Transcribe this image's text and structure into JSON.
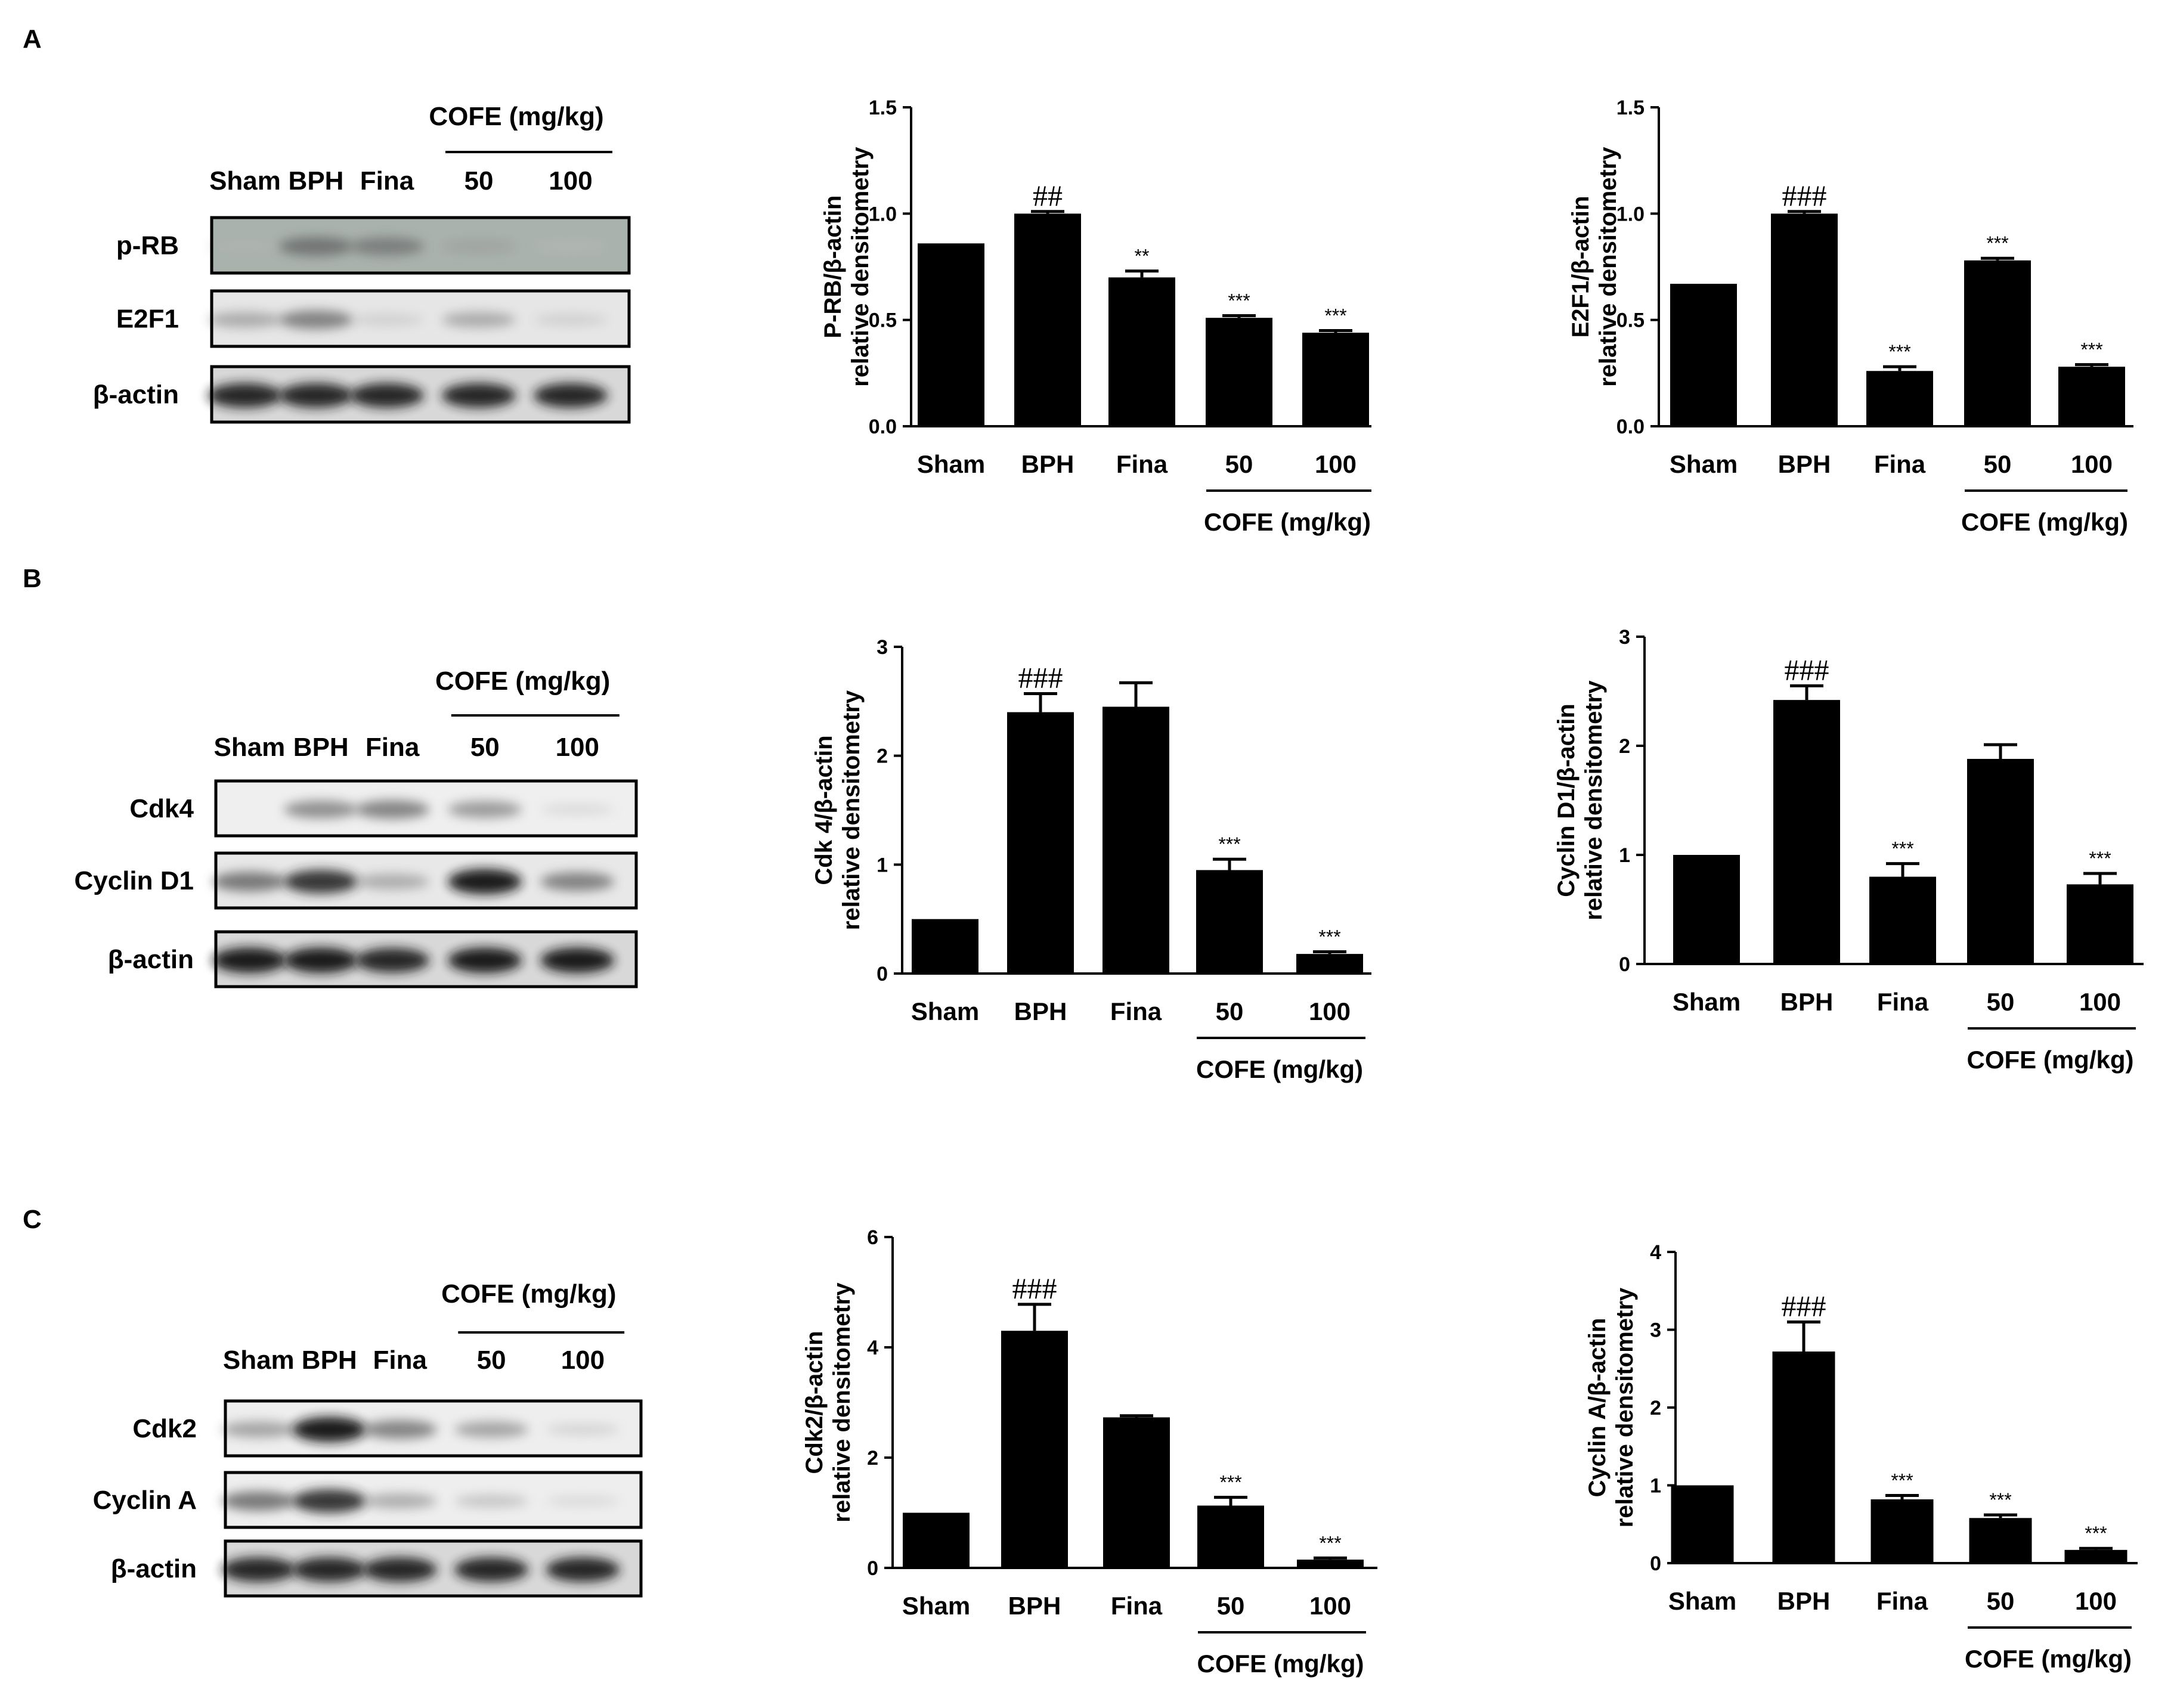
{
  "panels": [
    {
      "letter": "A",
      "blot": {
        "group_label": "COFE (mg/kg)",
        "lanes": [
          "Sham",
          "BPH",
          "Fina",
          "50",
          "100"
        ],
        "rows": [
          {
            "label": "p-RB",
            "intensity": [
              0.1,
              0.55,
              0.5,
              0.25,
              0.05
            ],
            "bg": "#a9b2ad"
          },
          {
            "label": "E2F1",
            "intensity": [
              0.35,
              0.55,
              0.1,
              0.35,
              0.1
            ],
            "bg": "#e6e6e6"
          },
          {
            "label": "β-actin",
            "intensity": [
              0.9,
              0.9,
              0.9,
              0.9,
              0.9
            ],
            "bg": "#d8d8d8"
          }
        ]
      },
      "charts_key": [
        0,
        1
      ]
    },
    {
      "letter": "B",
      "blot": {
        "group_label": "COFE (mg/kg)",
        "lanes": [
          "Sham",
          "BPH",
          "Fina",
          "50",
          "100"
        ],
        "rows": [
          {
            "label": "Cdk4",
            "intensity": [
              0.02,
              0.5,
              0.55,
              0.45,
              0.05
            ],
            "bg": "#efefef"
          },
          {
            "label": "Cyclin D1",
            "intensity": [
              0.6,
              0.85,
              0.35,
              0.95,
              0.55
            ],
            "bg": "#e8e8e8"
          },
          {
            "label": "β-actin",
            "intensity": [
              0.95,
              0.95,
              0.9,
              0.95,
              0.95
            ],
            "bg": "#d8d8d8"
          }
        ]
      }
    },
    {
      "letter": "C",
      "blot": {
        "group_label": "COFE (mg/kg)",
        "lanes": [
          "Sham",
          "BPH",
          "Fina",
          "50",
          "100"
        ],
        "rows": [
          {
            "label": "Cdk2",
            "intensity": [
              0.4,
              0.95,
              0.55,
              0.4,
              0.1
            ],
            "bg": "#eeeeee"
          },
          {
            "label": "Cyclin A",
            "intensity": [
              0.6,
              0.85,
              0.35,
              0.2,
              0.05
            ],
            "bg": "#eeeeee"
          },
          {
            "label": "β-actin",
            "intensity": [
              0.9,
              0.9,
              0.9,
              0.9,
              0.9
            ],
            "bg": "#d8d8d8"
          }
        ]
      }
    }
  ],
  "chart_data": [
    {
      "type": "bar",
      "panel": "A",
      "ylabel": "P-RB/β-actin\nrelative densitometry",
      "categories": [
        "Sham",
        "BPH",
        "Fina",
        "50",
        "100"
      ],
      "group_label": "COFE (mg/kg)",
      "values": [
        0.86,
        1.0,
        0.7,
        0.51,
        0.44
      ],
      "errors": [
        0.0,
        0.01,
        0.03,
        0.01,
        0.01
      ],
      "significance": [
        "",
        "##",
        "**",
        "***",
        "***"
      ],
      "ylim": [
        0,
        1.5
      ],
      "yticks": [
        "0.0",
        "0.5",
        "1.0",
        "1.5"
      ]
    },
    {
      "type": "bar",
      "panel": "A",
      "ylabel": "E2F1/β-actin\nrelative densitometry",
      "categories": [
        "Sham",
        "BPH",
        "Fina",
        "50",
        "100"
      ],
      "group_label": "COFE (mg/kg)",
      "values": [
        0.67,
        1.0,
        0.26,
        0.78,
        0.28
      ],
      "errors": [
        0.0,
        0.01,
        0.02,
        0.01,
        0.01
      ],
      "significance": [
        "",
        "###",
        "***",
        "***",
        "***"
      ],
      "ylim": [
        0,
        1.5
      ],
      "yticks": [
        "0.0",
        "0.5",
        "1.0",
        "1.5"
      ]
    },
    {
      "type": "bar",
      "panel": "B",
      "ylabel": "Cdk 4/β-actin\nrelative densitometry",
      "categories": [
        "Sham",
        "BPH",
        "Fina",
        "50",
        "100"
      ],
      "group_label": "COFE (mg/kg)",
      "values": [
        0.5,
        2.4,
        2.45,
        0.95,
        0.18
      ],
      "errors": [
        0.0,
        0.17,
        0.22,
        0.1,
        0.02
      ],
      "significance": [
        "",
        "###",
        "",
        "***",
        "***"
      ],
      "ylim": [
        0,
        3
      ],
      "yticks": [
        "0",
        "1",
        "2",
        "3"
      ]
    },
    {
      "type": "bar",
      "panel": "B",
      "ylabel": "Cyclin D1/β-actin\nrelative densitometry",
      "categories": [
        "Sham",
        "BPH",
        "Fina",
        "50",
        "100"
      ],
      "group_label": "COFE (mg/kg)",
      "values": [
        1.0,
        2.42,
        0.8,
        1.88,
        0.73
      ],
      "errors": [
        0.0,
        0.13,
        0.12,
        0.13,
        0.1
      ],
      "significance": [
        "",
        "###",
        "***",
        "",
        "***"
      ],
      "ylim": [
        0,
        3
      ],
      "yticks": [
        "0",
        "1",
        "2",
        "3"
      ]
    },
    {
      "type": "bar",
      "panel": "C",
      "ylabel": "Cdk2/β-actin\nrelative densitometry",
      "categories": [
        "Sham",
        "BPH",
        "Fina",
        "50",
        "100"
      ],
      "group_label": "COFE (mg/kg)",
      "values": [
        1.0,
        4.3,
        2.73,
        1.13,
        0.15
      ],
      "errors": [
        0.0,
        0.48,
        0.03,
        0.15,
        0.03
      ],
      "significance": [
        "",
        "###",
        "",
        "***",
        "***"
      ],
      "ylim": [
        0,
        6
      ],
      "yticks": [
        "0",
        "2",
        "4",
        "6"
      ]
    },
    {
      "type": "bar",
      "panel": "C",
      "ylabel": "Cyclin A/β-actin\nrelative densitometry",
      "categories": [
        "Sham",
        "BPH",
        "Fina",
        "50",
        "100"
      ],
      "group_label": "COFE (mg/kg)",
      "values": [
        1.0,
        2.72,
        0.82,
        0.58,
        0.17
      ],
      "errors": [
        0.0,
        0.38,
        0.05,
        0.04,
        0.02
      ],
      "significance": [
        "",
        "###",
        "***",
        "***",
        "***"
      ],
      "ylim": [
        0,
        4
      ],
      "yticks": [
        "0",
        "1",
        "2",
        "3",
        "4"
      ]
    }
  ]
}
